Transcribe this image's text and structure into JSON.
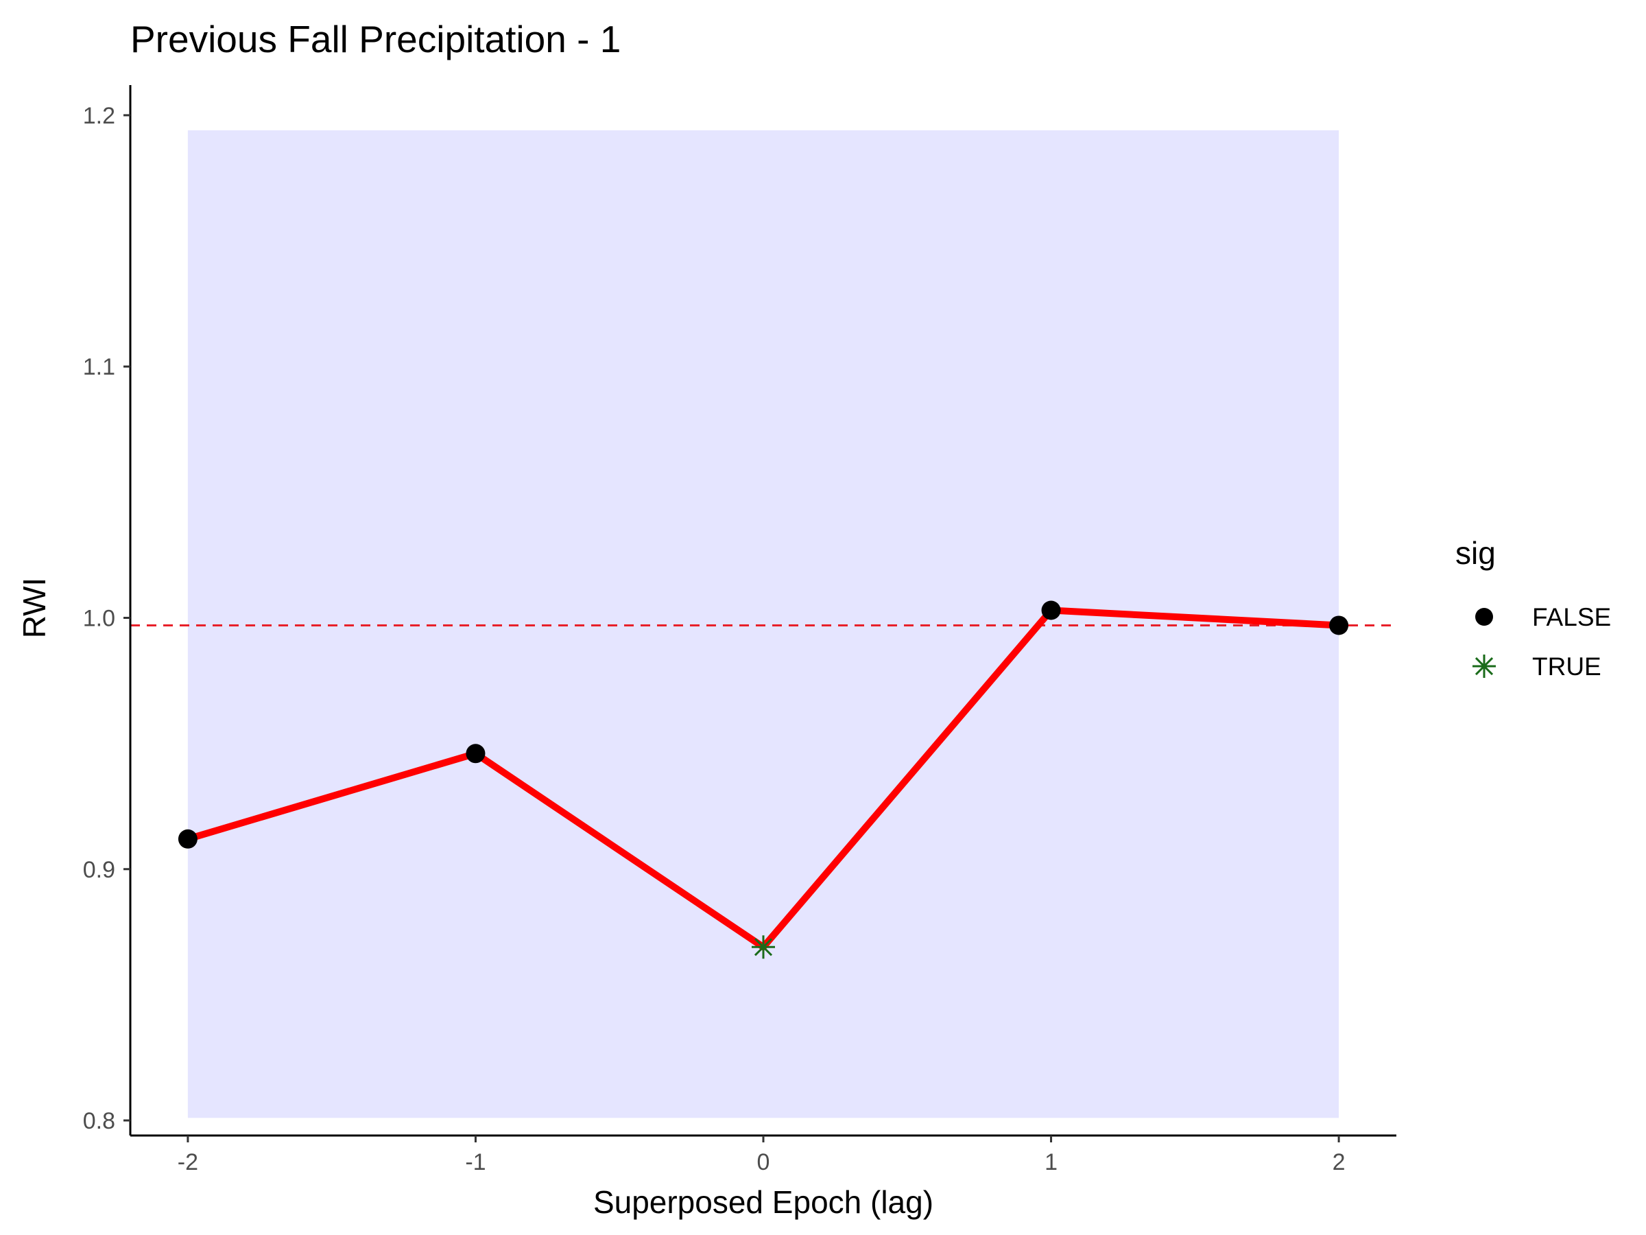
{
  "chart_data": {
    "type": "line",
    "title": "Previous Fall Precipitation - 1",
    "xlabel": "Superposed Epoch (lag)",
    "ylabel": "RWI",
    "x": [
      -2,
      -1,
      0,
      1,
      2
    ],
    "x_tick_labels": [
      "-2",
      "-1",
      "0",
      "1",
      "2"
    ],
    "xlim": [
      -2.2,
      2.2
    ],
    "y_ticks": [
      0.8,
      0.9,
      1.0,
      1.1,
      1.2
    ],
    "y_tick_labels": [
      "0.8",
      "0.9",
      "1.0",
      "1.1",
      "1.2"
    ],
    "ylim": [
      0.794,
      1.212
    ],
    "series": [
      {
        "values": [
          0.912,
          0.946,
          0.869,
          1.003,
          0.997
        ],
        "sig": [
          false,
          false,
          true,
          false,
          false
        ],
        "color": "#ff0000"
      }
    ],
    "confidence_band": {
      "x_range": [
        -2,
        2
      ],
      "y_range": [
        0.801,
        1.194
      ],
      "color": "#e5e5ff"
    },
    "reference_line": {
      "y": 0.997,
      "style": "dashed",
      "color": "#e8202a"
    },
    "legend": {
      "title": "sig",
      "position": "right",
      "entries": [
        {
          "label": "FALSE",
          "marker": "circle",
          "color": "#000000"
        },
        {
          "label": "TRUE",
          "marker": "asterisk",
          "color": "#1a6b1a"
        }
      ]
    },
    "grid": false
  }
}
